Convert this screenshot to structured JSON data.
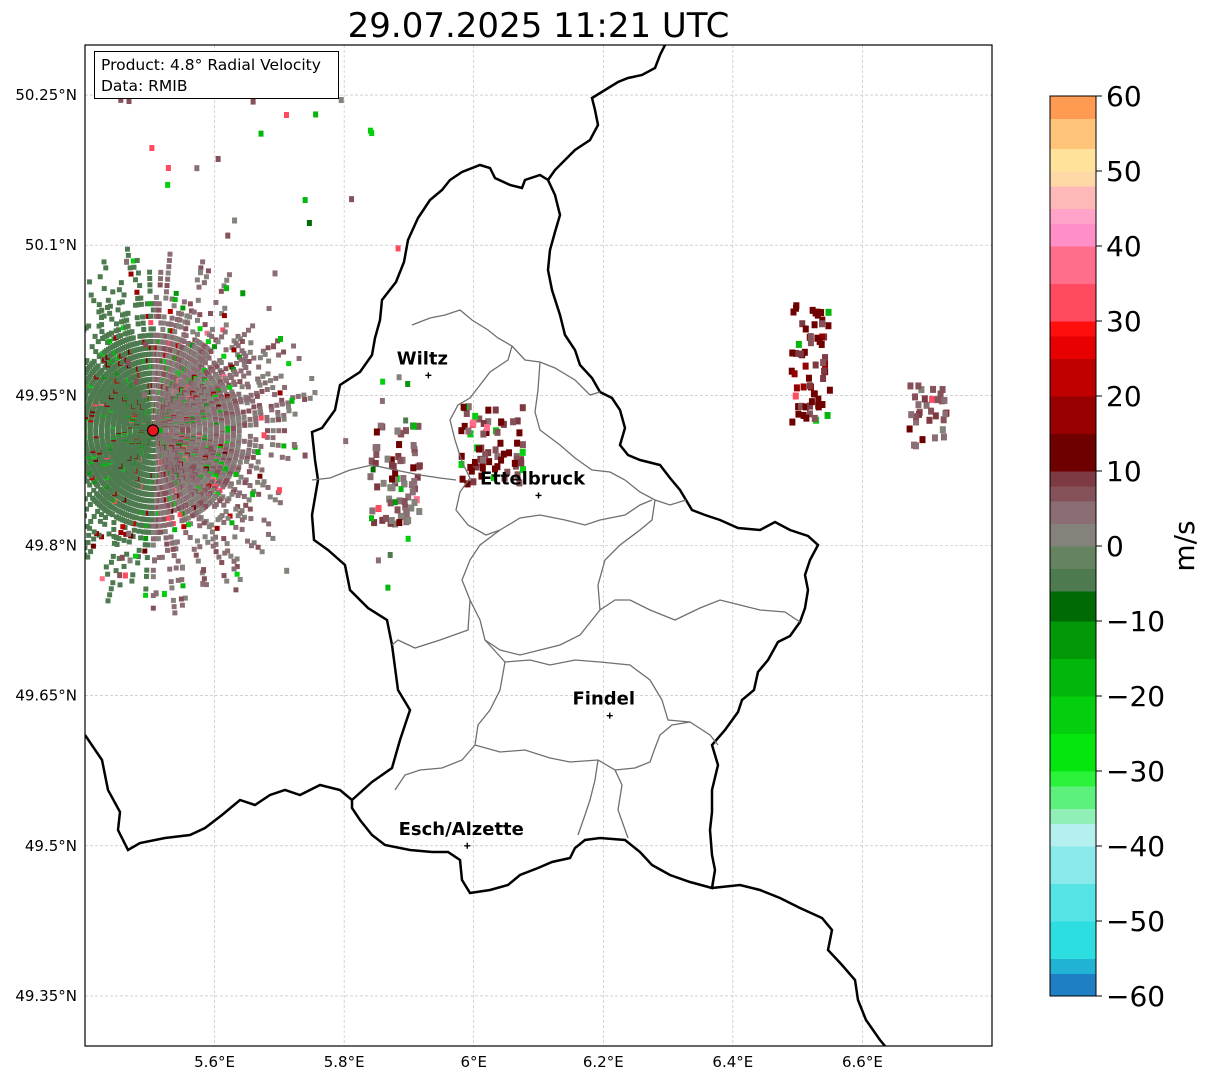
{
  "title": "29.07.2025 11:21 UTC",
  "info_box": {
    "product": "Product: 4.8° Radial Velocity",
    "data": "Data: RMIB"
  },
  "axes": {
    "x_ticks": [
      {
        "value": 5.6,
        "label": "5.6°E"
      },
      {
        "value": 5.8,
        "label": "5.8°E"
      },
      {
        "value": 6.0,
        "label": "6°E"
      },
      {
        "value": 6.2,
        "label": "6.2°E"
      },
      {
        "value": 6.4,
        "label": "6.4°E"
      },
      {
        "value": 6.6,
        "label": "6.6°E"
      }
    ],
    "y_ticks": [
      {
        "value": 50.25,
        "label": "50.25°N"
      },
      {
        "value": 50.1,
        "label": "50.1°N"
      },
      {
        "value": 49.95,
        "label": "49.95°N"
      },
      {
        "value": 49.8,
        "label": "49.8°N"
      },
      {
        "value": 49.65,
        "label": "49.65°N"
      },
      {
        "value": 49.5,
        "label": "49.5°N"
      },
      {
        "value": 49.35,
        "label": "49.35°N"
      }
    ],
    "lon_range": [
      5.4,
      6.8
    ],
    "lat_range": [
      49.3,
      50.3
    ],
    "grid": true
  },
  "cities": [
    {
      "name": "Wiltz",
      "lon": 5.93,
      "lat": 49.97
    },
    {
      "name": "Ettelbruck",
      "lon": 6.1,
      "lat": 49.85
    },
    {
      "name": "Findel",
      "lon": 6.21,
      "lat": 49.63
    },
    {
      "name": "Esch/Alzette",
      "lon": 5.99,
      "lat": 49.5
    }
  ],
  "radar_site": {
    "lon": 5.505,
    "lat": 49.915,
    "color": "#e8141e"
  },
  "colorbar": {
    "label": "m/s",
    "range": [
      -60,
      60
    ],
    "ticks": [
      {
        "value": 60,
        "label": "60"
      },
      {
        "value": 50,
        "label": "50"
      },
      {
        "value": 40,
        "label": "40"
      },
      {
        "value": 30,
        "label": "30"
      },
      {
        "value": 20,
        "label": "20"
      },
      {
        "value": 10,
        "label": "10"
      },
      {
        "value": 0,
        "label": "0"
      },
      {
        "value": -10,
        "label": "−10"
      },
      {
        "value": -20,
        "label": "−20"
      },
      {
        "value": -30,
        "label": "−30"
      },
      {
        "value": -40,
        "label": "−40"
      },
      {
        "value": -50,
        "label": "−50"
      },
      {
        "value": -60,
        "label": "−60"
      }
    ],
    "stops": [
      {
        "from": -60,
        "to": -57,
        "color": "#1f7fc4"
      },
      {
        "from": -57,
        "to": -55,
        "color": "#22b2d4"
      },
      {
        "from": -55,
        "to": -50,
        "color": "#2ddee0"
      },
      {
        "from": -50,
        "to": -45,
        "color": "#55e3e6"
      },
      {
        "from": -45,
        "to": -40,
        "color": "#8ae9ea"
      },
      {
        "from": -40,
        "to": -37,
        "color": "#b5f0ef"
      },
      {
        "from": -37,
        "to": -35,
        "color": "#8fefb4"
      },
      {
        "from": -35,
        "to": -32,
        "color": "#5ef07c"
      },
      {
        "from": -32,
        "to": -30,
        "color": "#2cf23c"
      },
      {
        "from": -30,
        "to": -25,
        "color": "#05e60f"
      },
      {
        "from": -25,
        "to": -20,
        "color": "#04cf0e"
      },
      {
        "from": -20,
        "to": -15,
        "color": "#03b60b"
      },
      {
        "from": -15,
        "to": -10,
        "color": "#029808"
      },
      {
        "from": -10,
        "to": -6,
        "color": "#006b04"
      },
      {
        "from": -6,
        "to": -3,
        "color": "#4e7a50"
      },
      {
        "from": -3,
        "to": 0,
        "color": "#64835e"
      },
      {
        "from": 0,
        "to": 3,
        "color": "#84827a"
      },
      {
        "from": 3,
        "to": 6,
        "color": "#8a6e74"
      },
      {
        "from": 6,
        "to": 8,
        "color": "#85525a"
      },
      {
        "from": 8,
        "to": 10,
        "color": "#7d3a42"
      },
      {
        "from": 10,
        "to": 15,
        "color": "#6e0000"
      },
      {
        "from": 15,
        "to": 20,
        "color": "#960000"
      },
      {
        "from": 20,
        "to": 25,
        "color": "#c00000"
      },
      {
        "from": 25,
        "to": 28,
        "color": "#e60000"
      },
      {
        "from": 28,
        "to": 30,
        "color": "#ff0e0e"
      },
      {
        "from": 30,
        "to": 35,
        "color": "#ff4a60"
      },
      {
        "from": 35,
        "to": 40,
        "color": "#ff6e8a"
      },
      {
        "from": 40,
        "to": 43,
        "color": "#ff8fc6"
      },
      {
        "from": 43,
        "to": 45,
        "color": "#ffa4c8"
      },
      {
        "from": 45,
        "to": 48,
        "color": "#ffb8b8"
      },
      {
        "from": 48,
        "to": 50,
        "color": "#ffd8a8"
      },
      {
        "from": 50,
        "to": 53,
        "color": "#ffe39a"
      },
      {
        "from": 53,
        "to": 57,
        "color": "#ffc47a"
      },
      {
        "from": 57,
        "to": 60,
        "color": "#ff9a52"
      }
    ]
  },
  "echo_clusters": [
    {
      "lon": 5.63,
      "lat": 49.93,
      "spread": 0.13,
      "mean_velocity": 2,
      "extent_lon": 0.25,
      "extent_lat": 0.18
    },
    {
      "lon": 5.88,
      "lat": 49.87,
      "spread": 0.03,
      "mean_velocity": 6,
      "extent_lon": 0.04,
      "extent_lat": 0.05
    },
    {
      "lon": 6.03,
      "lat": 49.9,
      "spread": 0.04,
      "mean_velocity": 10,
      "extent_lon": 0.05,
      "extent_lat": 0.04
    },
    {
      "lon": 6.52,
      "lat": 49.98,
      "spread": 0.03,
      "mean_velocity": 12,
      "extent_lon": 0.03,
      "extent_lat": 0.06
    },
    {
      "lon": 6.7,
      "lat": 49.93,
      "spread": 0.02,
      "mean_velocity": 6,
      "extent_lon": 0.03,
      "extent_lat": 0.03
    }
  ],
  "colors": {
    "country_border": "#000000",
    "canton_border": "#7a7a7a",
    "grid": "#b8b8b8"
  }
}
